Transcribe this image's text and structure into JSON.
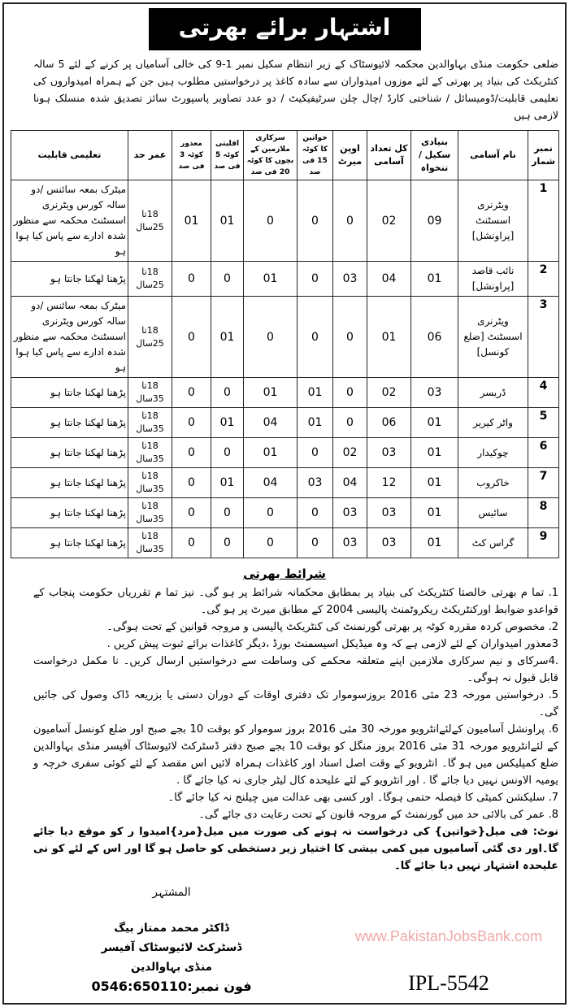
{
  "title": "اشتہار برائے بھرتی",
  "intro": "ضلعی حکومت منڈی بہاوالدین محکمہ لائیوسٹاک کے زیر انتظام سکیل نمبر 1-9 کی خالی آسامیاں پر کرنے کے لئے 5 سالہ کنٹریکٹ کی بنیاد پر بھرتی کے لئے موزوں امیدواران سے سادہ کاغذ پر درخواستیں مطلوب ہیں جن کے ہمراہ امیدواروں کی تعلیمی قابلیت/ڈومیسائل / شناختی کارڈ /چال چلن سرٹیفیکیٹ / دو عدد تصاویر پاسپورٹ سائز تصدیق شدہ منسلک ہونا لازمی ہیں",
  "table": {
    "headers": [
      "نمبر شمار",
      "نام آسامی",
      "بنیادی سکیل / تنخواہ",
      "کل تعداد آسامی",
      "اوپن میرٹ",
      "خواتین کا کوٹہ 15 فی صد",
      "سرکاری ملازمین کے بچوں کا کوٹہ 20 فی صد",
      "اقلیتی کوٹہ 5 فی صد",
      "معذور کوٹہ 3 فی صد",
      "عمر حد",
      "تعلیمی قابلیت"
    ],
    "rows": [
      {
        "sn": "1",
        "name": "ویٹرنری اسسٹنٹ [پراونشل]",
        "scale": "09",
        "total": "02",
        "open": "0",
        "women": "0",
        "govt": "0",
        "minority": "01",
        "disabled": "01",
        "age": "18تا 25سال",
        "qual": "میٹرک بمعہ سائنس /دو سالہ کورس ویٹرنری اسسٹنٹ محکمہ سے منظور شدہ ادارے سے پاس کیا ہوا ہو"
      },
      {
        "sn": "2",
        "name": "نائب قاصد [پراونشل]",
        "scale": "01",
        "total": "04",
        "open": "03",
        "women": "0",
        "govt": "01",
        "minority": "0",
        "disabled": "0",
        "age": "18تا 25سال",
        "qual": "پڑھنا لھکنا جانتا ہو"
      },
      {
        "sn": "3",
        "name": "ویٹرنری اسسٹنٹ [ضلع کونسل]",
        "scale": "06",
        "total": "01",
        "open": "0",
        "women": "0",
        "govt": "0",
        "minority": "01",
        "disabled": "0",
        "age": "18تا 25سال",
        "qual": "میٹرک بمعہ سائنس /دو سالہ کورس ویٹرنری اسسٹنٹ محکمہ سے منظور شدہ ادارے سے پاس کیا ہوا ہو"
      },
      {
        "sn": "4",
        "name": "ڈریسر",
        "scale": "03",
        "total": "02",
        "open": "0",
        "women": "01",
        "govt": "01",
        "minority": "0",
        "disabled": "0",
        "age": "18تا 35سال",
        "qual": "پڑھنا لھکنا جانتا ہو"
      },
      {
        "sn": "5",
        "name": "واٹر کیریر",
        "scale": "01",
        "total": "06",
        "open": "0",
        "women": "01",
        "govt": "04",
        "minority": "01",
        "disabled": "0",
        "age": "18تا 35سال",
        "qual": "پڑھنا لھکنا جانتا ہو"
      },
      {
        "sn": "6",
        "name": "چوکیدار",
        "scale": "01",
        "total": "03",
        "open": "02",
        "women": "0",
        "govt": "01",
        "minority": "0",
        "disabled": "0",
        "age": "18تا 35سال",
        "qual": "پڑھنا لھکنا جانتا ہو"
      },
      {
        "sn": "7",
        "name": "خاکروب",
        "scale": "01",
        "total": "12",
        "open": "04",
        "women": "03",
        "govt": "04",
        "minority": "01",
        "disabled": "0",
        "age": "18تا 35سال",
        "qual": "پڑھنا لھکنا جانتا ہو"
      },
      {
        "sn": "8",
        "name": "سائیس",
        "scale": "01",
        "total": "03",
        "open": "03",
        "women": "0",
        "govt": "0",
        "minority": "0",
        "disabled": "0",
        "age": "18تا 35سال",
        "qual": "پڑھنا لھکنا جانتا ہو"
      },
      {
        "sn": "9",
        "name": "گراس کٹ",
        "scale": "01",
        "total": "03",
        "open": "03",
        "women": "0",
        "govt": "0",
        "minority": "0",
        "disabled": "0",
        "age": "18تا 35سال",
        "qual": "پڑھنا لھکنا جانتا ہو"
      }
    ]
  },
  "conditions": {
    "title": "شرائط بھرتی",
    "items": [
      "1. تما م بھرتی خالصتا کنٹریکٹ کی بنیاد پر بمطابق محکمانہ شرائط پر ہو گی۔ نیز تما م تقرریاں حکومت پنجاب کے قواعدو ضوابط اورکنٹریکٹ ریکروٹمنٹ پالیسی 2004 کے مطابق میرٹ پر ہو گی۔",
      "2. مخصوص کردہ مقررہ کوٹہ پر بھرتی گورنمنٹ کی کنٹریکٹ پالیسی و مروجہ قوانین کے تحت ہوگی۔",
      "3معذور امیدواران کے لئے لازمی ہے کہ وہ میڈیکل اسیسمنٹ بورڈ ،دیگر کاغذات برائے ثبوت پیش کریں .",
      ".4سرکای و نیم سرکاری ملازمین اپنے متعلقہ محکمے کی وساطت سے درخواستیں ارسال کریں۔ نا مکمل درخواست قابل قبول نہ ہوگی۔",
      "5. درخواستیں مورخہ 23 مئی 2016 بروزسوموار تک دفتری اوقات کے دوران دستی یا بزریعہ ڈاک وصول کی جائیں گی۔",
      "6. پراونشل آسامیون کےلئےانٹرویو مورخہ 30 مئی 2016 بروز سوموار کو بوقت 10 بجے صبح اور ضلع کونسل آسامیون کے لئےانٹرویو مورخہ 31 مئی 2016 بروز منگل کو بوقت 10 بجے صبح دفتر ڈسٹرکٹ لائیوسٹاک آفیسر منڈی بہاوالدین ضلع کمپلیکس میں ہو گا۔ انٹرویو کے وقت اصل اسناد اور کاغذات ہمراہ لائیں اس مقصد کے لئے کوئی سفری خرچہ و یومیہ الاونس نہیں دیا جائے گا . اور انٹرویو کے لئے علیحدہ کال لیٹر جاری نہ کیا جائے گا .",
      "7. سلیکشن کمیٹی کا فیصلہ حتمی ہوگا۔ اور کسی بھی عدالت میں چیلنج نہ کیا جائے گا۔",
      "8. عمر کی بالائی حد میں گورنمنٹ کے مروجہ قانون کے تحت رعایت دی جائے گی۔"
    ],
    "note": "نوٹ: فی میل{خواتین} کی درخواست نہ ہونے کی صورت میں میل{مرد}امیدوا ر کو موقع دیا جائے گا۔اور دی گئی آسامیوں میں کمی بیشی کا اختیار زیر دستخطی کو حاصل ہو گا اور اس کے لئے کو نی علیحدہ اشتہار نہیں دیا جائے گا۔"
  },
  "signature": {
    "advertiser": "المشتہر",
    "name": "ڈاکٹر محمد ممتاز بیگ",
    "designation": "ڈسٹرکٹ لائیوسٹاک آفیسر",
    "place": "منڈی بہاوالدین",
    "phone": "فون نمبر:0546:650110"
  },
  "ipl": "IPL-5542",
  "watermark": "www.PakistanJobsBank.com"
}
